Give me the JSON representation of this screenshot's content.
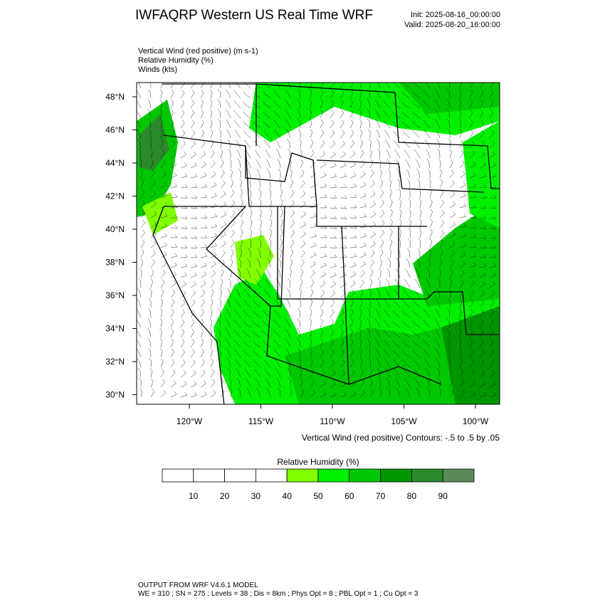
{
  "header": {
    "title": "IWFAQRP Western US Real Time WRF",
    "init": "Init: 2025-08-16_00:00:00",
    "valid": "Valid: 2025-08-20_16:00:00"
  },
  "fields": [
    "Vertical Wind (red positive)   (m s-1)",
    "Relative Humidity   (%)",
    "Winds   (kts)"
  ],
  "map": {
    "latitude_labels": [
      "48°N",
      "46°N",
      "44°N",
      "42°N",
      "40°N",
      "38°N",
      "36°N",
      "34°N",
      "32°N",
      "30°N"
    ],
    "longitude_labels": [
      "120°W",
      "115°W",
      "110°W",
      "105°W",
      "100°W"
    ],
    "contour_note": "Vertical Wind (red positive) Contours: -.5 to .5 by .05"
  },
  "colorbar": {
    "title": "Relative Humidity   (%)",
    "colors": [
      "#ffffff",
      "#ffffff",
      "#ffffff",
      "#ffffff",
      "#80ff00",
      "#00f000",
      "#00c800",
      "#009600",
      "#2a8a2a",
      "#5a8a5a"
    ],
    "labels": [
      10,
      20,
      30,
      40,
      50,
      60,
      70,
      80,
      90
    ]
  },
  "footer": {
    "line1": "OUTPUT FROM WRF V4.6.1 MODEL",
    "line2": "WE = 310 ; SN = 275 ; Levels = 38 ; Dis = 8km ; Phys Opt = 8 ; PBL Opt = 1 ; Cu Opt = 3"
  }
}
